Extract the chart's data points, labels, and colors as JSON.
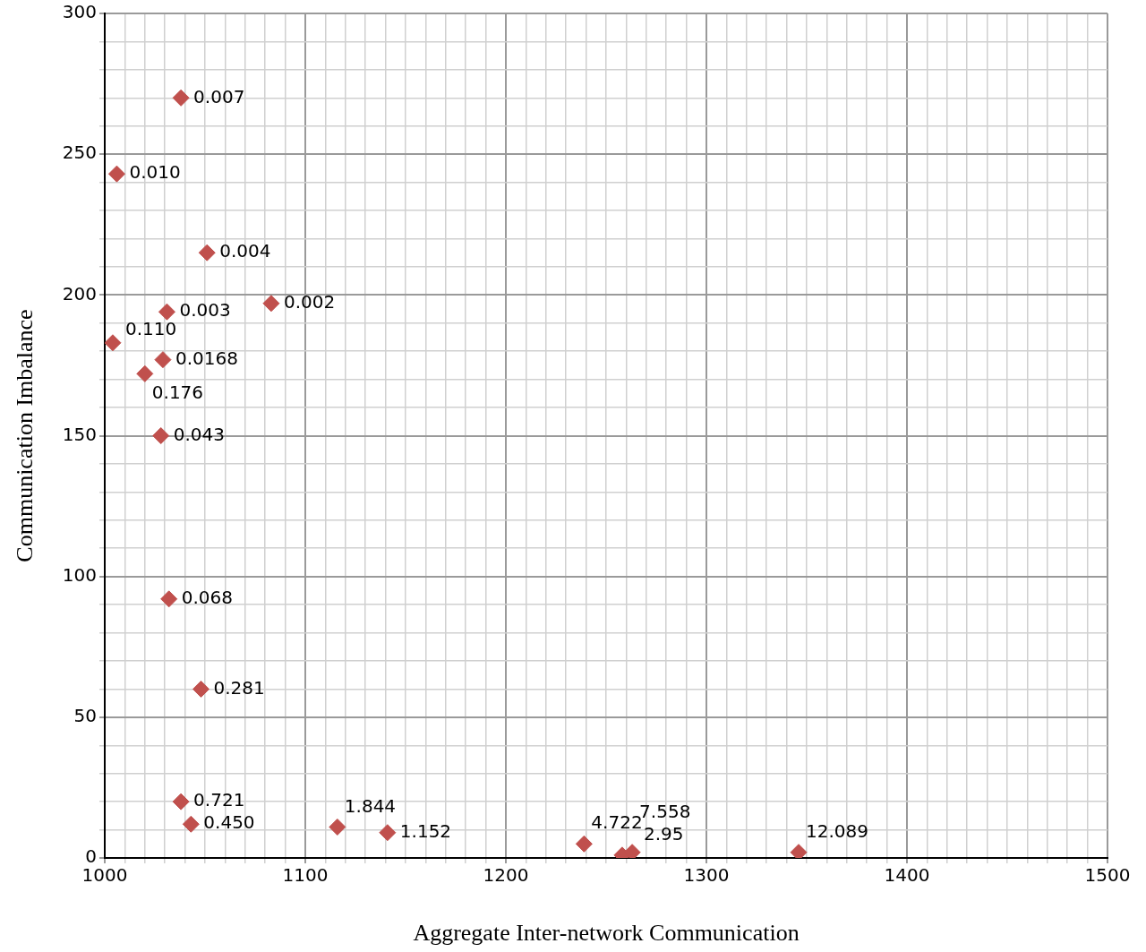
{
  "chart_data": {
    "type": "scatter",
    "xlabel": "Aggregate Inter-network Communication",
    "ylabel": "Communication Imbalance",
    "x": [
      1038,
      1006,
      1051,
      1031,
      1083,
      1004,
      1029,
      1020,
      1028,
      1032,
      1048,
      1038,
      1043,
      1116,
      1141,
      1239,
      1258,
      1263,
      1346
    ],
    "values": [
      270,
      243,
      215,
      194,
      197,
      183,
      177,
      172,
      150,
      92,
      60,
      20,
      12,
      11,
      9,
      5,
      1,
      2,
      2
    ],
    "annotations": [
      {
        "text": "0.007",
        "x": 1038,
        "y": 270
      },
      {
        "text": "0.010",
        "x": 1006,
        "y": 243
      },
      {
        "text": "0.004",
        "x": 1051,
        "y": 215
      },
      {
        "text": "0.003",
        "x": 1031,
        "y": 194
      },
      {
        "text": "0.002",
        "x": 1083,
        "y": 197
      },
      {
        "text": "0.110",
        "x": 1004,
        "y": 183
      },
      {
        "text": "0.0168",
        "x": 1029,
        "y": 177
      },
      {
        "text": "0.176",
        "x": 1020,
        "y": 172
      },
      {
        "text": "0.043",
        "x": 1028,
        "y": 150
      },
      {
        "text": "0.068",
        "x": 1032,
        "y": 92
      },
      {
        "text": "0.281",
        "x": 1048,
        "y": 60
      },
      {
        "text": "0.721",
        "x": 1038,
        "y": 20
      },
      {
        "text": "0.450",
        "x": 1043,
        "y": 12
      },
      {
        "text": "1.844",
        "x": 1116,
        "y": 11
      },
      {
        "text": "1.152",
        "x": 1141,
        "y": 9
      },
      {
        "text": "4.722",
        "x": 1239,
        "y": 5
      },
      {
        "text": "2.95",
        "x": 1258,
        "y": 1
      },
      {
        "text": "7.558",
        "x": 1263,
        "y": 2
      },
      {
        "text": "12.089",
        "x": 1346,
        "y": 2
      }
    ],
    "color": "#c0504d",
    "marker": "diamond",
    "grid": true,
    "legend": false,
    "xlim": [
      1000,
      1500
    ],
    "ylim": [
      0,
      300
    ],
    "xticks": [
      1000,
      {
        "value": 1010,
        "label": null
      },
      {
        "value": 1020,
        "label": null
      },
      {
        "value": 1030,
        "label": null
      },
      {
        "value": 1040,
        "label": null
      },
      {
        "value": 1050,
        "label": null
      },
      {
        "value": 1060,
        "label": null
      },
      {
        "value": 1070,
        "label": null
      },
      {
        "value": 1080,
        "label": null
      },
      {
        "value": 1090,
        "label": null
      },
      1100,
      {
        "value": 1110,
        "label": null
      },
      {
        "value": 1120,
        "label": null
      },
      {
        "value": 1130,
        "label": null
      },
      {
        "value": 1140,
        "label": null
      },
      {
        "value": 1150,
        "label": null
      },
      {
        "value": 1160,
        "label": null
      },
      {
        "value": 1170,
        "label": null
      },
      {
        "value": 1180,
        "label": null
      },
      {
        "value": 1190,
        "label": null
      },
      1200,
      {
        "value": 1210,
        "label": null
      },
      {
        "value": 1220,
        "label": null
      },
      {
        "value": 1230,
        "label": null
      },
      {
        "value": 1240,
        "label": null
      },
      {
        "value": 1250,
        "label": null
      },
      {
        "value": 1260,
        "label": null
      },
      {
        "value": 1270,
        "label": null
      },
      {
        "value": 1280,
        "label": null
      },
      {
        "value": 1290,
        "label": null
      },
      1300,
      {
        "value": 1310,
        "label": null
      },
      {
        "value": 1320,
        "label": null
      },
      {
        "value": 1330,
        "label": null
      },
      {
        "value": 1340,
        "label": null
      },
      {
        "value": 1350,
        "label": null
      },
      {
        "value": 1360,
        "label": null
      },
      {
        "value": 1370,
        "label": null
      },
      {
        "value": 1380,
        "label": null
      },
      {
        "value": 1390,
        "label": null
      },
      1400,
      {
        "value": 1410,
        "label": null
      },
      {
        "value": 1420,
        "label": null
      },
      {
        "value": 1430,
        "label": null
      },
      {
        "value": 1440,
        "label": null
      },
      {
        "value": 1450,
        "label": null
      },
      {
        "value": 1460,
        "label": null
      },
      {
        "value": 1470,
        "label": null
      },
      {
        "value": 1480,
        "label": null
      },
      {
        "value": 1490,
        "label": null
      },
      1500
    ],
    "yticks": [
      0,
      {
        "value": 10,
        "label": null
      },
      {
        "value": 20,
        "label": null
      },
      {
        "value": 30,
        "label": null
      },
      {
        "value": 40,
        "label": null
      },
      50,
      {
        "value": 60,
        "label": null
      },
      {
        "value": 70,
        "label": null
      },
      {
        "value": 80,
        "label": null
      },
      {
        "value": 90,
        "label": null
      },
      100,
      {
        "value": 110,
        "label": null
      },
      {
        "value": 120,
        "label": null
      },
      {
        "value": 130,
        "label": null
      },
      {
        "value": 140,
        "label": null
      },
      150,
      {
        "value": 160,
        "label": null
      },
      {
        "value": 170,
        "label": null
      },
      {
        "value": 180,
        "label": null
      },
      {
        "value": 190,
        "label": null
      },
      200,
      {
        "value": 210,
        "label": null
      },
      {
        "value": 220,
        "label": null
      },
      {
        "value": 230,
        "label": null
      },
      {
        "value": 240,
        "label": null
      },
      250,
      {
        "value": 260,
        "label": null
      },
      {
        "value": 270,
        "label": null
      },
      {
        "value": 280,
        "label": null
      },
      {
        "value": 290,
        "label": null
      },
      300
    ]
  }
}
